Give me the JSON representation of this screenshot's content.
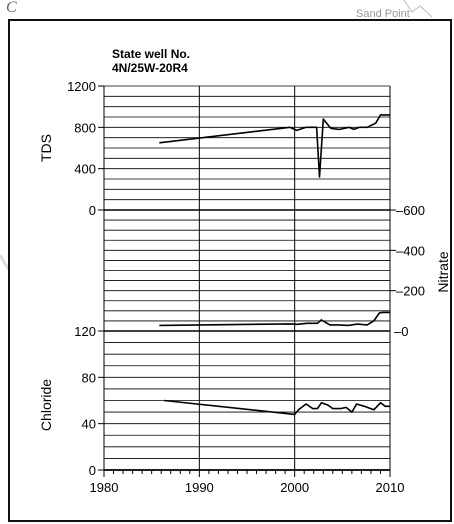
{
  "background_labels": {
    "corner_letter": "C",
    "place_name": "Sand Point"
  },
  "chart_data": {
    "type": "line",
    "title": "State well No.\n4N/25W-20R4",
    "title_lines": [
      "State well No.",
      "4N/25W-20R4"
    ],
    "xlim": [
      1980,
      2010
    ],
    "x_ticks": [
      1980,
      1990,
      2000,
      2010
    ],
    "panels": [
      {
        "name": "TDS",
        "ylabel": "TDS",
        "axis_side": "left",
        "ylim": [
          0,
          1200
        ],
        "y_ticks": [
          0,
          400,
          800,
          1200
        ],
        "grid_step": 100,
        "series": [
          {
            "name": "TDS",
            "x": [
              1985.8,
              1999.5,
              2000.2,
              2001.2,
              2002.3,
              2002.6,
              2003.0,
              2003.8,
              2004.7,
              2005.7,
              2006.2,
              2006.8,
              2007.6,
              2008.5,
              2009.0,
              2009.4,
              2010.0
            ],
            "y": [
              650,
              800,
              770,
              800,
              800,
              320,
              880,
              790,
              780,
              800,
              780,
              800,
              800,
              840,
              920,
              920,
              920
            ]
          }
        ]
      },
      {
        "name": "Nitrate",
        "ylabel": "Nitrate",
        "axis_side": "right",
        "ylim": [
          0,
          600
        ],
        "y_ticks": [
          0,
          200,
          400,
          600
        ],
        "grid_step": 50,
        "series": [
          {
            "name": "Nitrate",
            "x": [
              1985.8,
              1999.5,
              2000.3,
              2001.3,
              2002.4,
              2002.8,
              2003.7,
              2004.6,
              2005.6,
              2006.6,
              2007.6,
              2008.3,
              2008.9,
              2009.2,
              2010.0
            ],
            "y": [
              28,
              35,
              33,
              38,
              38,
              55,
              30,
              30,
              28,
              34,
              30,
              50,
              90,
              92,
              92
            ]
          }
        ]
      },
      {
        "name": "Chloride",
        "ylabel": "Chloride",
        "axis_side": "left",
        "ylim": [
          0,
          120
        ],
        "y_ticks": [
          0,
          40,
          80,
          120
        ],
        "grid_step": 10,
        "series": [
          {
            "name": "Chloride",
            "x": [
              1986.3,
              2000.0,
              2000.4,
              2001.2,
              2001.9,
              2002.4,
              2002.8,
              2003.5,
              2004.0,
              2004.8,
              2005.4,
              2006.0,
              2006.5,
              2007.3,
              2008.3,
              2009.0,
              2009.5,
              2010.0
            ],
            "y": [
              60,
              48,
              52,
              57,
              53,
              53,
              58,
              56,
              53,
              53,
              54,
              50,
              57,
              55,
              52,
              58,
              55,
              55
            ]
          }
        ]
      }
    ]
  }
}
